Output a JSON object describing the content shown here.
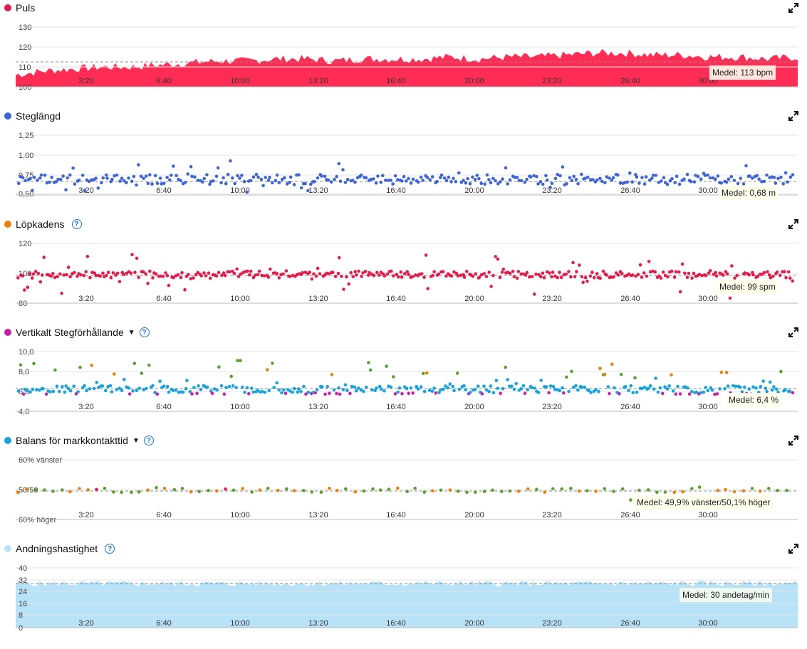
{
  "x_ticks": [
    "3:20",
    "6:40",
    "10:00",
    "13:20",
    "16:40",
    "20:00",
    "23:20",
    "26:40",
    "30:00"
  ],
  "panels": [
    {
      "title": "Puls",
      "color": "#e8194b",
      "help": false,
      "caret": false,
      "y_ticks": [
        "130",
        "120",
        "110",
        "100"
      ],
      "avg_label": "Medel: 113 bpm"
    },
    {
      "title": "Steglängd",
      "color": "#3e64d8",
      "help": false,
      "caret": false,
      "y_ticks": [
        "1,25",
        "1,00",
        "0,75",
        "0,50"
      ],
      "avg_label": "Medel: 0,68 m"
    },
    {
      "title": "Löpkadens",
      "color": "#ee7f00",
      "help": true,
      "caret": false,
      "y_ticks": [
        "120",
        "100",
        "80"
      ],
      "avg_label": "Medel: 99 spm"
    },
    {
      "title": "Vertikalt Stegförhållande",
      "color": "#cc1fa8",
      "help": true,
      "caret": true,
      "y_ticks": [
        "10,0",
        "8,0",
        "6,0",
        "4,0"
      ],
      "avg_label": "Medel: 6,4 %"
    },
    {
      "title": "Balans för markkontakttid",
      "color": "#14a3e0",
      "help": true,
      "caret": true,
      "y_ticks": [
        "60% vänster",
        "50/50",
        "60% höger"
      ],
      "avg_label": "Medel: 49,9% vänster/50,1% höger"
    },
    {
      "title": "Andningshastighet",
      "color": "#b8e2f7",
      "help": true,
      "caret": false,
      "y_ticks": [
        "40",
        "32",
        "24",
        "16",
        "8",
        "0"
      ],
      "avg_label": "Medel: 30 andetag/min"
    }
  ],
  "chart_data": [
    {
      "type": "area",
      "title": "Puls",
      "unit": "bpm",
      "ylim": [
        100,
        130
      ],
      "mean": 113,
      "series_color": "#ff2d55",
      "approx_profile": [
        106,
        108,
        109,
        110,
        110,
        111,
        112,
        113,
        113,
        114,
        114,
        113,
        114,
        114,
        114,
        115,
        114,
        115,
        115,
        116,
        117,
        117,
        116,
        116,
        115,
        115,
        114,
        115
      ]
    },
    {
      "type": "scatter",
      "title": "Steglängd",
      "unit": "m",
      "ylim": [
        0.5,
        1.25
      ],
      "mean": 0.68,
      "series_color": "#3e64d8"
    },
    {
      "type": "scatter",
      "title": "Löpkadens",
      "unit": "spm",
      "ylim": [
        80,
        120
      ],
      "mean": 99,
      "series_color": "#e8194b"
    },
    {
      "type": "scatter",
      "title": "Vertikalt Stegförhållande",
      "unit": "%",
      "ylim": [
        4,
        10
      ],
      "mean": 6.4,
      "series_color": "#14a3e0"
    },
    {
      "type": "scatter",
      "title": "Balans för markkontakttid",
      "mean_left": 49.9,
      "mean_right": 50.1,
      "series_color": "#5aa02c"
    },
    {
      "type": "area",
      "title": "Andningshastighet",
      "unit": "andetag/min",
      "ylim": [
        0,
        40
      ],
      "mean": 30,
      "series_color": "#b8e2f7"
    }
  ]
}
